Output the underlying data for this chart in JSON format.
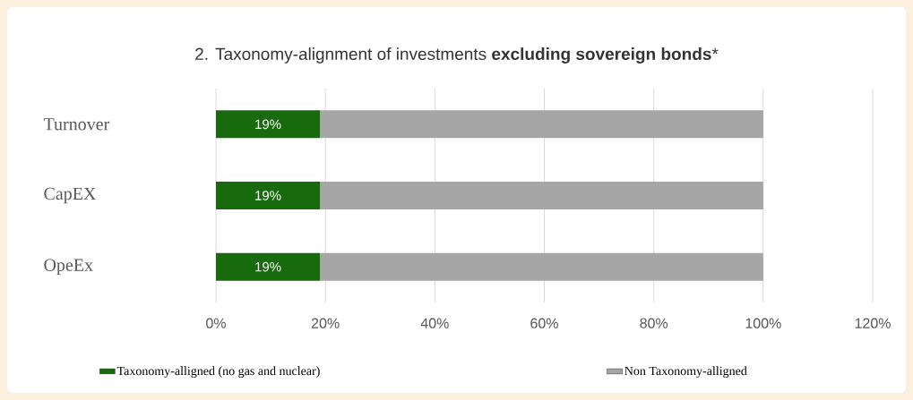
{
  "chart_data": {
    "type": "bar",
    "orientation": "horizontal",
    "stacked": true,
    "title": "2. Taxonomy-alignment of investments **excluding sovereign bonds***",
    "categories": [
      "Turnover",
      "CapEX",
      "OpeEx"
    ],
    "series": [
      {
        "name": "Taxonomy-alligned (no gas and nuclear)",
        "color": "#176b0c",
        "values": [
          19,
          19,
          19
        ],
        "value_labels": [
          "19%",
          "19%",
          "19%"
        ]
      },
      {
        "name": "Non Taxonomy-alligned",
        "color": "#a6a6a6",
        "values": [
          81,
          81,
          81
        ]
      }
    ],
    "xlim": [
      0,
      120
    ],
    "xticks": [
      {
        "value": 0,
        "label": "0%"
      },
      {
        "value": 20,
        "label": "20%"
      },
      {
        "value": 40,
        "label": "40%"
      },
      {
        "value": 60,
        "label": "60%"
      },
      {
        "value": 80,
        "label": "80%"
      },
      {
        "value": 100,
        "label": "100%"
      },
      {
        "value": 120,
        "label": "120%"
      }
    ],
    "grid": "x",
    "legend": "bottom"
  }
}
